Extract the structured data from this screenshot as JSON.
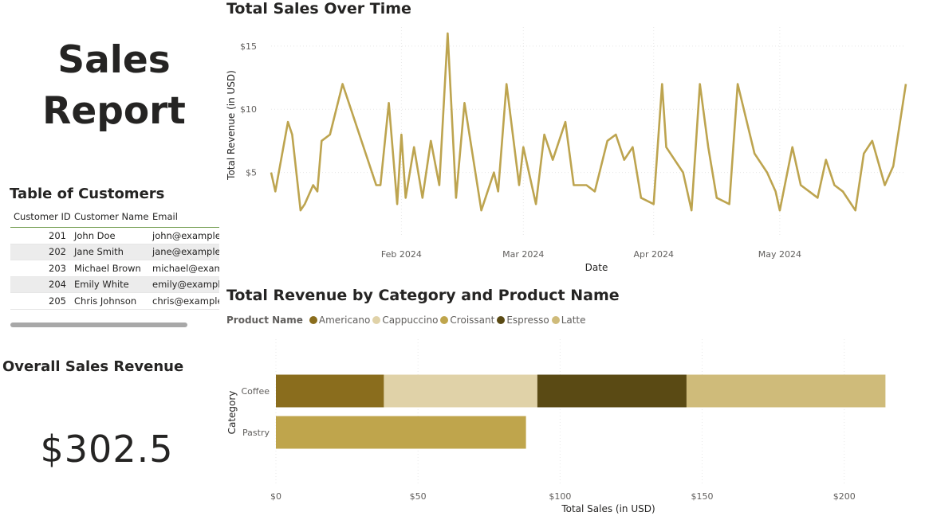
{
  "report": {
    "title_line1": "Sales",
    "title_line2": "Report"
  },
  "customers": {
    "title": "Table of Customers",
    "columns": [
      "Customer ID",
      "Customer Name",
      "Email"
    ],
    "rows": [
      {
        "id": "201",
        "name": "John Doe",
        "email": "john@example.com"
      },
      {
        "id": "202",
        "name": "Jane Smith",
        "email": "jane@example.com"
      },
      {
        "id": "203",
        "name": "Michael Brown",
        "email": "michael@example.com"
      },
      {
        "id": "204",
        "name": "Emily White",
        "email": "emily@example.com"
      },
      {
        "id": "205",
        "name": "Chris Johnson",
        "email": "chris@example.com"
      }
    ]
  },
  "kpi": {
    "title": "Overall Sales Revenue",
    "value": "$302.5"
  },
  "line_chart": {
    "title": "Total Sales Over Time",
    "color": "#bda44f"
  },
  "bar_chart": {
    "title": "Total Revenue by Category and Product Name",
    "legend_title": "Product Name"
  },
  "chart_data": [
    {
      "type": "line",
      "title": "Total Sales Over Time",
      "xlabel": "Date",
      "ylabel": "Total Revenue (in USD)",
      "x_ticks": [
        "Feb 2024",
        "Mar 2024",
        "Apr 2024",
        "May 2024"
      ],
      "y_ticks": [
        "$5",
        "$10",
        "$15"
      ],
      "ylim": [
        0,
        16.5
      ],
      "xlim": [
        "2024-01-01",
        "2024-05-31"
      ],
      "grid": true,
      "series": [
        {
          "color": "#bda44f",
          "x": [
            "2024-01-01",
            "2024-01-02",
            "2024-01-05",
            "2024-01-06",
            "2024-01-08",
            "2024-01-09",
            "2024-01-11",
            "2024-01-12",
            "2024-01-13",
            "2024-01-15",
            "2024-01-18",
            "2024-01-26",
            "2024-01-27",
            "2024-01-29",
            "2024-01-31",
            "2024-02-01",
            "2024-02-02",
            "2024-02-04",
            "2024-02-06",
            "2024-02-08",
            "2024-02-10",
            "2024-02-12",
            "2024-02-14",
            "2024-02-16",
            "2024-02-20",
            "2024-02-23",
            "2024-02-24",
            "2024-02-26",
            "2024-02-29",
            "2024-03-01",
            "2024-03-04",
            "2024-03-06",
            "2024-03-08",
            "2024-03-09",
            "2024-03-11",
            "2024-03-13",
            "2024-03-16",
            "2024-03-18",
            "2024-03-21",
            "2024-03-23",
            "2024-03-25",
            "2024-03-27",
            "2024-03-29",
            "2024-04-01",
            "2024-04-03",
            "2024-04-04",
            "2024-04-08",
            "2024-04-10",
            "2024-04-12",
            "2024-04-14",
            "2024-04-16",
            "2024-04-19",
            "2024-04-21",
            "2024-04-25",
            "2024-04-28",
            "2024-04-30",
            "2024-05-01",
            "2024-05-04",
            "2024-05-06",
            "2024-05-08",
            "2024-05-10",
            "2024-05-12",
            "2024-05-14",
            "2024-05-16",
            "2024-05-19",
            "2024-05-21",
            "2024-05-23",
            "2024-05-26",
            "2024-05-28",
            "2024-05-31"
          ],
          "y": [
            5.0,
            3.5,
            9.0,
            8.0,
            2.0,
            2.5,
            4.0,
            3.5,
            7.5,
            8.0,
            12.0,
            4.0,
            4.0,
            10.5,
            2.5,
            8.0,
            3.0,
            7.0,
            3.0,
            7.5,
            4.0,
            16.0,
            3.0,
            10.5,
            2.0,
            5.0,
            3.5,
            12.0,
            4.0,
            7.0,
            2.5,
            8.0,
            6.0,
            7.0,
            9.0,
            4.0,
            4.0,
            3.5,
            7.5,
            8.0,
            6.0,
            7.0,
            3.0,
            2.5,
            12.0,
            7.0,
            5.0,
            2.0,
            12.0,
            7.0,
            3.0,
            2.5,
            12.0,
            6.5,
            5.0,
            3.5,
            2.0,
            7.0,
            4.0,
            3.5,
            3.0,
            6.0,
            4.0,
            3.5,
            2.0,
            6.5,
            7.5,
            4.0,
            5.5,
            12.0
          ]
        }
      ]
    },
    {
      "type": "bar",
      "orientation": "horizontal",
      "stacked": true,
      "title": "Total Revenue by Category and Product Name",
      "xlabel": "Total Sales (in USD)",
      "ylabel": "Category",
      "categories": [
        "Coffee",
        "Pastry"
      ],
      "x_ticks": [
        "$0",
        "$50",
        "$100",
        "$150",
        "$200"
      ],
      "xlim": [
        0,
        220
      ],
      "legend_title": "Product Name",
      "legend_position": "top-left",
      "series": [
        {
          "name": "Americano",
          "color": "#8a6d1d",
          "values": [
            38,
            0
          ]
        },
        {
          "name": "Cappuccino",
          "color": "#e0d2a8",
          "values": [
            54,
            0
          ]
        },
        {
          "name": "Croissant",
          "color": "#bfa54c",
          "values": [
            0,
            88
          ]
        },
        {
          "name": "Espresso",
          "color": "#5a4a14",
          "values": [
            52.5,
            0
          ]
        },
        {
          "name": "Latte",
          "color": "#cfbb7a",
          "values": [
            70,
            0
          ]
        }
      ]
    }
  ]
}
